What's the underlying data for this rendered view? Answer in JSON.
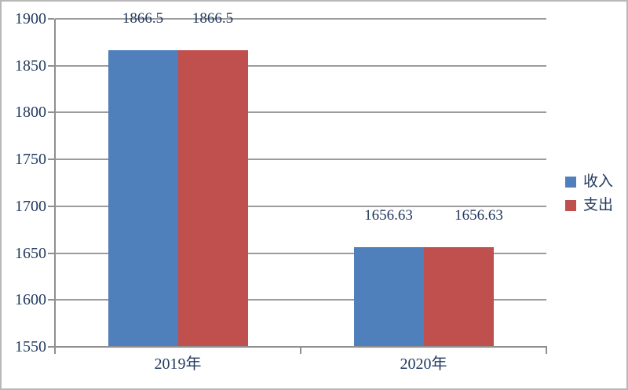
{
  "chart_data": {
    "type": "bar",
    "categories": [
      "2019年",
      "2020年"
    ],
    "series": [
      {
        "name": "收入",
        "color": "#4F80BC",
        "values": [
          1866.5,
          1656.63
        ]
      },
      {
        "name": "支出",
        "color": "#BF504D",
        "values": [
          1866.5,
          1656.63
        ]
      }
    ],
    "title": "",
    "xlabel": "",
    "ylabel": "",
    "ylim": [
      1550,
      1900
    ],
    "y_ticks": [
      1550,
      1600,
      1650,
      1700,
      1750,
      1800,
      1850,
      1900
    ],
    "grid": true,
    "legend_position": "right",
    "data_label_values": [
      "1866.5",
      "1866.5",
      "1656.63",
      "1656.63"
    ]
  },
  "colors": {
    "income_blue": "#4F80BC",
    "expense_red": "#BF504D",
    "axis_gray": "#8F8F8F",
    "grid_gray": "#9C9C9C",
    "text_navy": "#223A60",
    "frame_border": "#B8B8B8"
  }
}
